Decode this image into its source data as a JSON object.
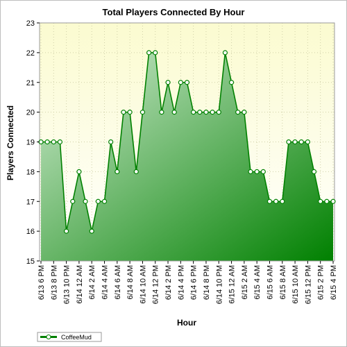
{
  "chart_data": {
    "type": "area",
    "title": "Total Players Connected By Hour",
    "xlabel": "Hour",
    "ylabel": "Players Connected",
    "ylim": [
      15,
      23
    ],
    "yticks": [
      15,
      16,
      17,
      18,
      19,
      20,
      21,
      22,
      23
    ],
    "grid": true,
    "legend_position": "bottom-left",
    "x": [
      "6/13 6 PM",
      "6/13 7 PM",
      "6/13 8 PM",
      "6/13 9 PM",
      "6/13 10 PM",
      "6/13 11 PM",
      "6/14 12 AM",
      "6/14 1 AM",
      "6/14 2 AM",
      "6/14 3 AM",
      "6/14 4 AM",
      "6/14 5 AM",
      "6/14 6 AM",
      "6/14 7 AM",
      "6/14 8 AM",
      "6/14 9 AM",
      "6/14 10 AM",
      "6/14 11 AM",
      "6/14 12 PM",
      "6/14 1 PM",
      "6/14 2 PM",
      "6/14 3 PM",
      "6/14 4 PM",
      "6/14 5 PM",
      "6/14 6 PM",
      "6/14 7 PM",
      "6/14 8 PM",
      "6/14 9 PM",
      "6/14 10 PM",
      "6/14 11 PM",
      "6/15 12 AM",
      "6/15 1 AM",
      "6/15 2 AM",
      "6/15 3 AM",
      "6/15 4 AM",
      "6/15 5 AM",
      "6/15 6 AM",
      "6/15 7 AM",
      "6/15 8 AM",
      "6/15 9 AM",
      "6/15 10 AM",
      "6/15 11 AM",
      "6/15 12 PM",
      "6/15 1 PM",
      "6/15 2 PM",
      "6/15 3 PM",
      "6/15 4 PM"
    ],
    "tick_labels": [
      "6/13 6 PM",
      "6/13 8 PM",
      "6/13 10 PM",
      "6/14 12 AM",
      "6/14 2 AM",
      "6/14 4 AM",
      "6/14 6 AM",
      "6/14 8 AM",
      "6/14 10 AM",
      "6/14 12 PM",
      "6/14 2 PM",
      "6/14 4 PM",
      "6/14 6 PM",
      "6/14 8 PM",
      "6/14 10 PM",
      "6/15 12 AM",
      "6/15 2 AM",
      "6/15 4 AM",
      "6/15 6 AM",
      "6/15 8 AM",
      "6/15 10 AM",
      "6/15 12 PM",
      "6/15 2 PM",
      "6/15 4 PM"
    ],
    "series": [
      {
        "name": "CoffeeMud",
        "color": "#008000",
        "values": [
          19,
          19,
          19,
          19,
          16,
          17,
          18,
          17,
          16,
          17,
          17,
          19,
          18,
          20,
          20,
          18,
          20,
          22,
          22,
          20,
          21,
          20,
          21,
          21,
          20,
          20,
          20,
          20,
          20,
          22,
          21,
          20,
          20,
          18,
          18,
          18,
          17,
          17,
          17,
          19,
          19,
          19,
          19,
          18,
          17,
          17,
          17
        ]
      }
    ]
  },
  "colors": {
    "plot_bg_top": "#fbfbd0",
    "plot_bg_bottom": "#ffffff",
    "area_light": "#d2ecd2",
    "area_dark": "#008000",
    "line": "#008000",
    "grid": "#d0d0a8"
  }
}
